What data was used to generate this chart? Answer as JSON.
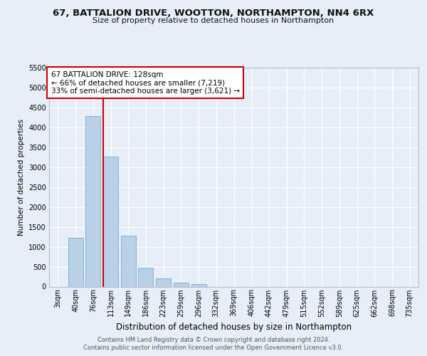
{
  "title1": "67, BATTALION DRIVE, WOOTTON, NORTHAMPTON, NN4 6RX",
  "title2": "Size of property relative to detached houses in Northampton",
  "xlabel": "Distribution of detached houses by size in Northampton",
  "ylabel": "Number of detached properties",
  "categories": [
    "3sqm",
    "40sqm",
    "76sqm",
    "113sqm",
    "149sqm",
    "186sqm",
    "223sqm",
    "259sqm",
    "296sqm",
    "332sqm",
    "369sqm",
    "406sqm",
    "442sqm",
    "479sqm",
    "515sqm",
    "552sqm",
    "589sqm",
    "625sqm",
    "662sqm",
    "698sqm",
    "735sqm"
  ],
  "values": [
    0,
    1220,
    4280,
    3270,
    1270,
    480,
    210,
    90,
    60,
    0,
    0,
    0,
    0,
    0,
    0,
    0,
    0,
    0,
    0,
    0,
    0
  ],
  "bar_color": "#b8d0e8",
  "bar_edge_color": "#7aaacf",
  "vline_color": "#cc0000",
  "vline_pos": 2.57,
  "annotation_text": "67 BATTALION DRIVE: 128sqm\n← 66% of detached houses are smaller (7,219)\n33% of semi-detached houses are larger (3,621) →",
  "annotation_box_color": "#ffffff",
  "annotation_box_edge": "#cc0000",
  "footer1": "Contains HM Land Registry data © Crown copyright and database right 2024.",
  "footer2": "Contains public sector information licensed under the Open Government Licence v3.0.",
  "ylim": [
    0,
    5500
  ],
  "yticks": [
    0,
    500,
    1000,
    1500,
    2000,
    2500,
    3000,
    3500,
    4000,
    4500,
    5000,
    5500
  ],
  "bg_color": "#e8eef8",
  "plot_bg_color": "#e8eef8",
  "title_fontsize": 9.5,
  "subtitle_fontsize": 8.0,
  "ylabel_fontsize": 7.5,
  "xlabel_fontsize": 8.5,
  "tick_fontsize": 7.0,
  "annot_fontsize": 7.5,
  "footer_fontsize": 6.0
}
